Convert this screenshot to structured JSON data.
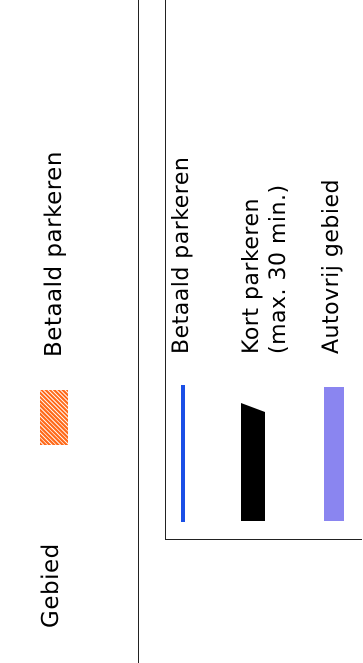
{
  "top_legend": {
    "gebied_label": "Gebied",
    "hatch_label": "Betaald parkeren",
    "hatch_color": "#ff6a1a"
  },
  "legend": {
    "items": [
      {
        "label": "Betaald parkeren",
        "color": "#1a4fe6"
      },
      {
        "label_line1": "Kort parkeren",
        "label_line2": "(max. 30 min.)",
        "color": "#000000"
      },
      {
        "label": "Autovrij gebied",
        "color": "#8a85f0"
      }
    ]
  }
}
